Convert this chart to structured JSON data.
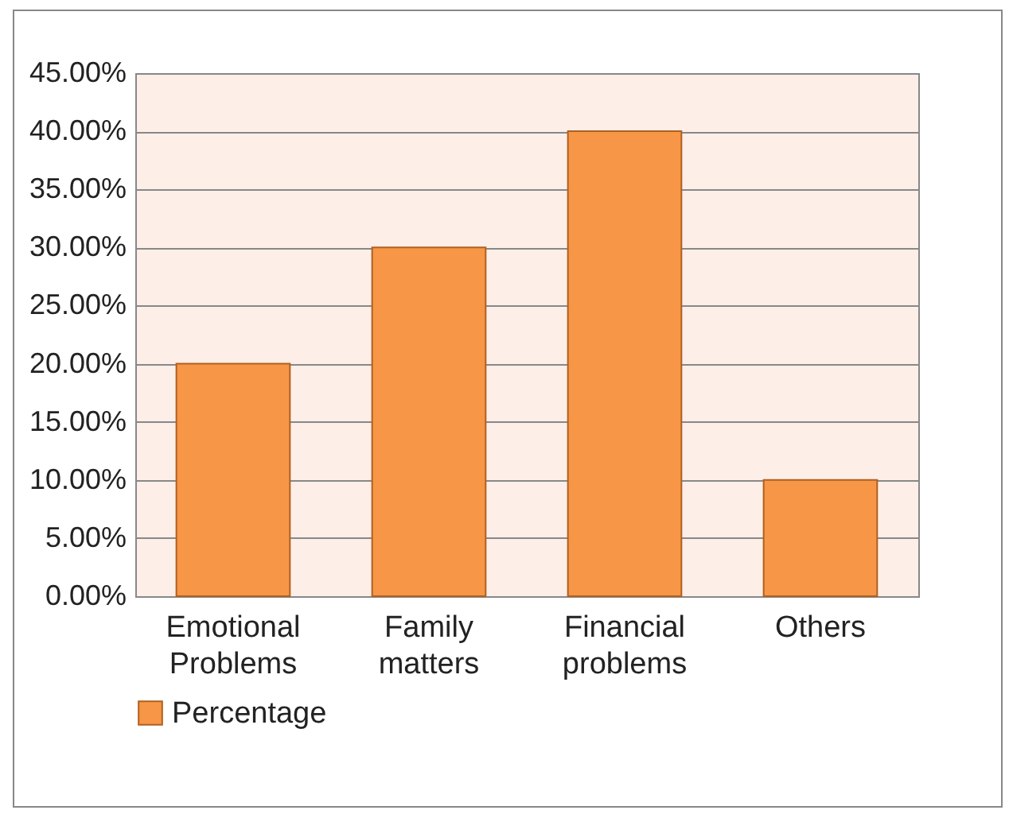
{
  "chart_data": {
    "type": "bar",
    "categories": [
      "Emotional Problems",
      "Family matters",
      "Financial problems",
      "Others"
    ],
    "series": [
      {
        "name": "Percentage",
        "color": "#f79646",
        "values": [
          20,
          30,
          40,
          10
        ]
      }
    ],
    "ylim": [
      0,
      45
    ],
    "yticks": [
      {
        "value": 0,
        "label": "0.00%"
      },
      {
        "value": 5,
        "label": "5.00%"
      },
      {
        "value": 10,
        "label": "10.00%"
      },
      {
        "value": 15,
        "label": "15.00%"
      },
      {
        "value": 20,
        "label": "20.00%"
      },
      {
        "value": 25,
        "label": "25.00%"
      },
      {
        "value": 30,
        "label": "30.00%"
      },
      {
        "value": 35,
        "label": "35.00%"
      },
      {
        "value": 40,
        "label": "40.00%"
      },
      {
        "value": 45,
        "label": "45.00%"
      }
    ],
    "grid": "y",
    "legend": "bottom"
  }
}
